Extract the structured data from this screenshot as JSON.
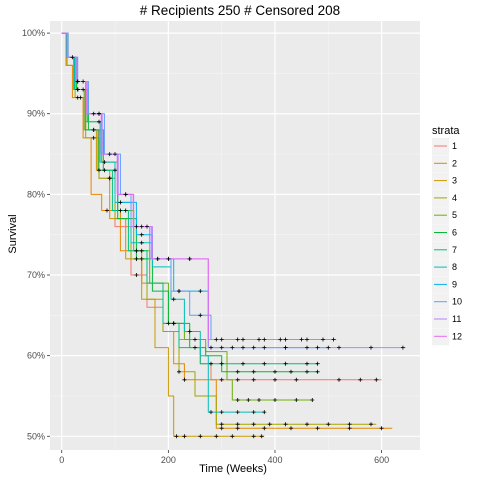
{
  "chart_data": {
    "type": "line",
    "subtype": "kaplan-meier-step",
    "title": "# Recipients 250 # Censored 208",
    "xlabel": "Time (Weeks)",
    "ylabel": "Survival",
    "xlim": [
      -22,
      672
    ],
    "ylim": [
      0.483,
      1.015
    ],
    "x_ticks": [
      0,
      200,
      400,
      600
    ],
    "x_tick_labels": [
      "0",
      "200",
      "400",
      "600"
    ],
    "y_ticks": [
      0.5,
      0.6,
      0.7,
      0.8,
      0.9,
      1.0
    ],
    "y_tick_labels": [
      "50%",
      "60%",
      "70%",
      "80%",
      "90%",
      "100%"
    ],
    "grid": true,
    "background": "#ebebeb",
    "legend": {
      "title": "strata",
      "position": "right"
    },
    "censor_marker": "+",
    "series": [
      {
        "name": "1",
        "color": "#F8766D",
        "steps": [
          [
            0,
            1.0
          ],
          [
            10,
            0.97
          ],
          [
            25,
            0.93
          ],
          [
            45,
            0.88
          ],
          [
            70,
            0.82
          ],
          [
            100,
            0.76
          ],
          [
            130,
            0.7
          ],
          [
            160,
            0.66
          ],
          [
            190,
            0.64
          ],
          [
            220,
            0.62
          ],
          [
            260,
            0.59
          ],
          [
            280,
            0.57
          ]
        ],
        "end": 600,
        "censor": [
          30,
          60,
          90,
          140,
          210,
          300,
          330,
          360,
          400,
          440,
          520,
          560,
          590
        ]
      },
      {
        "name": "2",
        "color": "#E58700",
        "steps": [
          [
            0,
            1.0
          ],
          [
            8,
            0.96
          ],
          [
            20,
            0.92
          ],
          [
            40,
            0.87
          ],
          [
            55,
            0.8
          ],
          [
            75,
            0.78
          ],
          [
            110,
            0.73
          ],
          [
            150,
            0.69
          ],
          [
            190,
            0.63
          ],
          [
            210,
            0.59
          ],
          [
            230,
            0.57
          ],
          [
            290,
            0.51
          ]
        ],
        "end": 620,
        "censor": [
          35,
          85,
          140,
          230,
          300,
          330,
          380,
          430,
          480,
          540,
          600
        ]
      },
      {
        "name": "3",
        "color": "#C99800",
        "steps": [
          [
            0,
            1.0
          ],
          [
            8,
            0.97
          ],
          [
            22,
            0.93
          ],
          [
            42,
            0.88
          ],
          [
            65,
            0.83
          ],
          [
            90,
            0.77
          ],
          [
            120,
            0.72
          ],
          [
            150,
            0.67
          ],
          [
            175,
            0.61
          ],
          [
            200,
            0.55
          ],
          [
            210,
            0.5
          ]
        ],
        "end": 380,
        "censor": [
          30,
          80,
          140,
          215,
          230,
          260,
          290,
          320,
          360,
          375
        ]
      },
      {
        "name": "4",
        "color": "#A3A500",
        "steps": [
          [
            0,
            1.0
          ],
          [
            10,
            0.96
          ],
          [
            25,
            0.92
          ],
          [
            45,
            0.87
          ],
          [
            70,
            0.82
          ],
          [
            100,
            0.77
          ],
          [
            130,
            0.72
          ],
          [
            160,
            0.67
          ],
          [
            190,
            0.63
          ],
          [
            220,
            0.58
          ],
          [
            250,
            0.55
          ],
          [
            290,
            0.515
          ]
        ],
        "end": 590,
        "censor": [
          30,
          60,
          90,
          140,
          220,
          300,
          330,
          360,
          390,
          420,
          460,
          500,
          540,
          580
        ]
      },
      {
        "name": "5",
        "color": "#6BB100",
        "steps": [
          [
            0,
            1.0
          ],
          [
            12,
            0.97
          ],
          [
            28,
            0.93
          ],
          [
            48,
            0.89
          ],
          [
            75,
            0.84
          ],
          [
            105,
            0.78
          ],
          [
            135,
            0.73
          ],
          [
            165,
            0.69
          ],
          [
            200,
            0.64
          ],
          [
            230,
            0.62
          ],
          [
            270,
            0.605
          ],
          [
            310,
            0.57
          ],
          [
            320,
            0.545
          ]
        ],
        "end": 470,
        "censor": [
          40,
          80,
          120,
          150,
          210,
          250,
          330,
          350,
          370,
          400,
          440,
          470
        ]
      },
      {
        "name": "6",
        "color": "#00BA38",
        "steps": [
          [
            0,
            1.0
          ],
          [
            10,
            0.97
          ],
          [
            28,
            0.93
          ],
          [
            50,
            0.88
          ],
          [
            78,
            0.83
          ],
          [
            105,
            0.77
          ],
          [
            140,
            0.72
          ],
          [
            170,
            0.68
          ],
          [
            200,
            0.64
          ],
          [
            240,
            0.61
          ],
          [
            270,
            0.6
          ],
          [
            300,
            0.58
          ]
        ],
        "end": 480,
        "censor": [
          20,
          60,
          100,
          150,
          210,
          250,
          330,
          360,
          400,
          430,
          460,
          480
        ]
      },
      {
        "name": "7",
        "color": "#00BF7D",
        "steps": [
          [
            0,
            1.0
          ],
          [
            9,
            0.97
          ],
          [
            24,
            0.93
          ],
          [
            44,
            0.88
          ],
          [
            68,
            0.83
          ],
          [
            95,
            0.78
          ],
          [
            125,
            0.73
          ],
          [
            160,
            0.69
          ],
          [
            190,
            0.64
          ],
          [
            220,
            0.61
          ],
          [
            260,
            0.59
          ]
        ],
        "end": 480,
        "censor": [
          30,
          70,
          110,
          140,
          200,
          280,
          300,
          340,
          380,
          420,
          460,
          480
        ]
      },
      {
        "name": "8",
        "color": "#00C0B8",
        "steps": [
          [
            0,
            1.0
          ],
          [
            10,
            0.97
          ],
          [
            25,
            0.93
          ],
          [
            45,
            0.89
          ],
          [
            72,
            0.84
          ],
          [
            100,
            0.79
          ],
          [
            130,
            0.74
          ],
          [
            170,
            0.71
          ],
          [
            205,
            0.67
          ],
          [
            230,
            0.63
          ],
          [
            260,
            0.6
          ],
          [
            275,
            0.53
          ]
        ],
        "end": 380,
        "censor": [
          30,
          70,
          110,
          150,
          210,
          240,
          280,
          300,
          330,
          360,
          380
        ]
      },
      {
        "name": "9",
        "color": "#00B4EF",
        "steps": [
          [
            0,
            1.0
          ],
          [
            10,
            0.97
          ],
          [
            25,
            0.94
          ],
          [
            45,
            0.9
          ],
          [
            75,
            0.85
          ],
          [
            105,
            0.79
          ],
          [
            140,
            0.75
          ],
          [
            170,
            0.72
          ],
          [
            210,
            0.68
          ],
          [
            275,
            0.61
          ]
        ],
        "end": 500,
        "censor": [
          30,
          60,
          100,
          150,
          180,
          220,
          260,
          300,
          340,
          380,
          420,
          460,
          500
        ]
      },
      {
        "name": "10",
        "color": "#619CFF",
        "steps": [
          [
            0,
            1.0
          ],
          [
            12,
            0.97
          ],
          [
            30,
            0.94
          ],
          [
            50,
            0.9
          ],
          [
            80,
            0.85
          ],
          [
            110,
            0.8
          ],
          [
            130,
            0.76
          ],
          [
            165,
            0.72
          ],
          [
            205,
            0.68
          ],
          [
            240,
            0.65
          ],
          [
            280,
            0.62
          ]
        ],
        "end": 480,
        "censor": [
          40,
          90,
          140,
          180,
          220,
          260,
          300,
          340,
          380,
          420,
          460
        ]
      },
      {
        "name": "11",
        "color": "#B983FF",
        "steps": [
          [
            0,
            1.0
          ],
          [
            11,
            0.97
          ],
          [
            28,
            0.94
          ],
          [
            48,
            0.9
          ],
          [
            76,
            0.85
          ],
          [
            106,
            0.8
          ],
          [
            135,
            0.76
          ],
          [
            170,
            0.72
          ],
          [
            275,
            0.61
          ]
        ],
        "end": 645,
        "censor": [
          30,
          70,
          120,
          160,
          200,
          240,
          280,
          320,
          360,
          420,
          480,
          520,
          580,
          640
        ]
      },
      {
        "name": "12",
        "color": "#E76BF3",
        "steps": [
          [
            0,
            1.0
          ],
          [
            10,
            0.97
          ],
          [
            26,
            0.94
          ],
          [
            46,
            0.9
          ],
          [
            74,
            0.85
          ],
          [
            104,
            0.8
          ],
          [
            134,
            0.76
          ],
          [
            168,
            0.72
          ],
          [
            275,
            0.62
          ]
        ],
        "end": 515,
        "censor": [
          30,
          70,
          120,
          150,
          200,
          240,
          290,
          330,
          370,
          410,
          450,
          490,
          510
        ]
      }
    ]
  }
}
